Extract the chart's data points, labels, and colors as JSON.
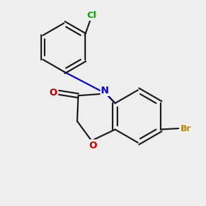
{
  "background_color": "#eeeeee",
  "bond_color": "#1a1a1a",
  "N_color": "#0000cc",
  "O_color": "#cc0000",
  "Br_color": "#b8860b",
  "Cl_color": "#00aa00",
  "figsize": [
    3.0,
    3.0
  ],
  "dpi": 100,
  "xlim": [
    0,
    10
  ],
  "ylim": [
    0,
    10
  ]
}
